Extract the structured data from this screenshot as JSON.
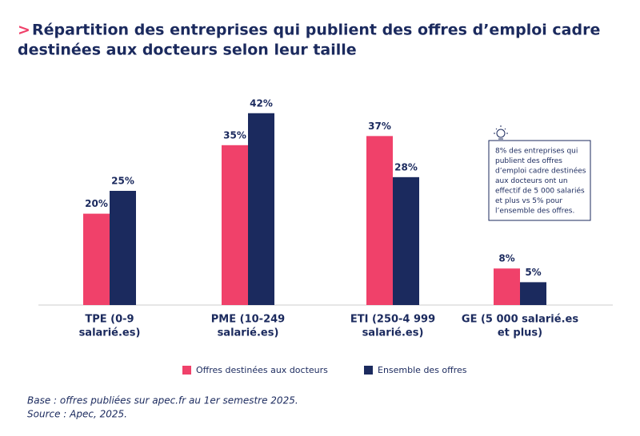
{
  "chart_data": {
    "type": "bar",
    "title_prefix": ">",
    "title": [
      "Répartition des entreprises qui publient des offres d’emploi cadre",
      "destinées aux docteurs selon leur taille"
    ],
    "categories": [
      [
        "TPE (0-9",
        "salarié.es)"
      ],
      [
        "PME (10-249",
        "salarié.es)"
      ],
      [
        "ETI (250-4 999",
        "salarié.es)"
      ],
      [
        "GE (5 000 salarié.es",
        "et plus)"
      ]
    ],
    "series": [
      {
        "name": "Offres destinées aux docteurs",
        "color": "#f0416a",
        "values": [
          20,
          35,
          37,
          8
        ],
        "value_labels": [
          "20%",
          "35%",
          "37%",
          "8%"
        ]
      },
      {
        "name": "Ensemble des offres",
        "color": "#1b2a5e",
        "values": [
          25,
          42,
          28,
          5
        ],
        "value_labels": [
          "25%",
          "42%",
          "28%",
          "5%"
        ]
      }
    ],
    "annotation": [
      "8% des entreprises qui",
      "publient des offres",
      "d’emploi cadre destinées",
      "aux docteurs ont un",
      "effectif de 5 000 salariés",
      "et plus vs 5% pour",
      "l’ensemble des offres."
    ],
    "notes": [
      "Base : offres publiées sur apec.fr au 1er semestre 2025.",
      "Source : Apec, 2025."
    ]
  }
}
